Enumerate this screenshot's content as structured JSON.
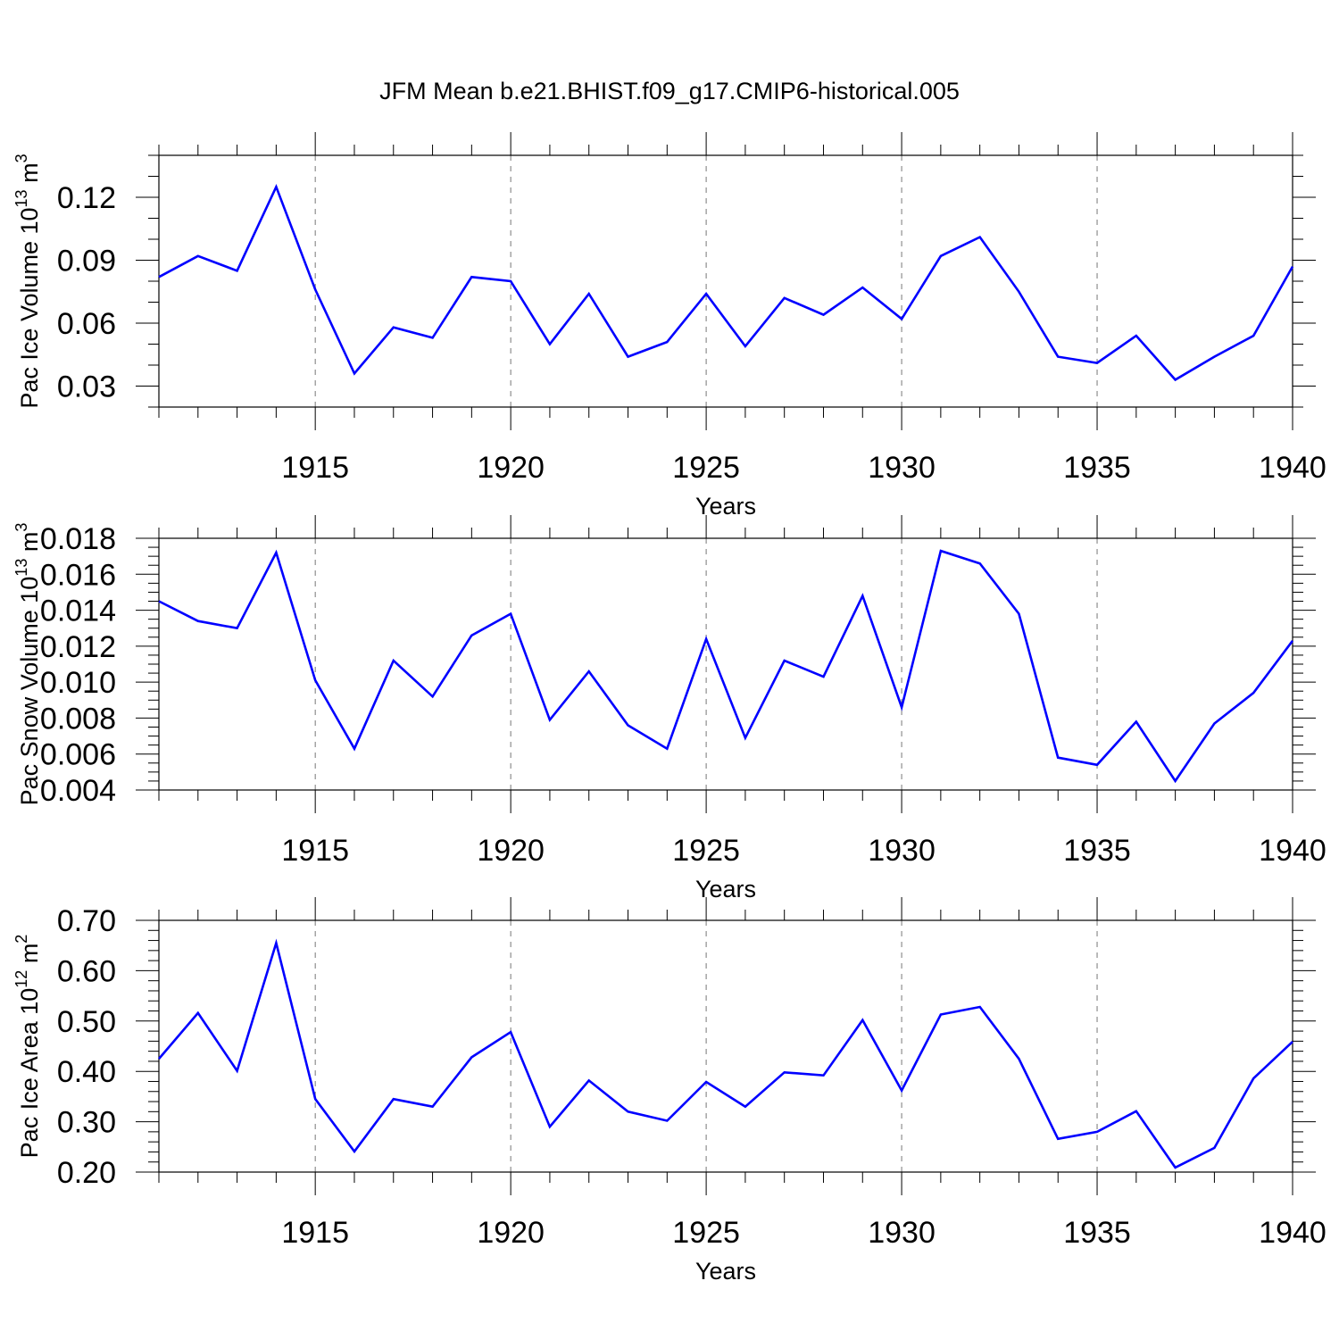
{
  "title": "JFM Mean b.e21.BHIST.f09_g17.CMIP6-historical.005",
  "line_color": "#0000ff",
  "chart_data": [
    {
      "type": "line",
      "ylabel": "Pac Ice Volume 10",
      "ylabel_exp": "13",
      "ylabel_unit": " m",
      "ylabel_unit_exp": "3",
      "xlabel": "Years",
      "xlim": [
        1911,
        1940
      ],
      "ylim": [
        0.02,
        0.14
      ],
      "xticks": [
        1915,
        1920,
        1925,
        1930,
        1935,
        1940
      ],
      "yticks": [
        0.03,
        0.06,
        0.09,
        0.12
      ],
      "yticklabels": [
        "0.03",
        "0.06",
        "0.09",
        "0.12"
      ],
      "yminor_step": 0.01,
      "grid": "dashed vertical at x major ticks",
      "x": [
        1911,
        1912,
        1913,
        1914,
        1915,
        1916,
        1917,
        1918,
        1919,
        1920,
        1921,
        1922,
        1923,
        1924,
        1925,
        1926,
        1927,
        1928,
        1929,
        1930,
        1931,
        1932,
        1933,
        1934,
        1935,
        1936,
        1937,
        1938,
        1939,
        1940
      ],
      "y": [
        0.082,
        0.092,
        0.085,
        0.125,
        0.076,
        0.036,
        0.058,
        0.053,
        0.082,
        0.08,
        0.05,
        0.074,
        0.044,
        0.051,
        0.074,
        0.049,
        0.072,
        0.064,
        0.077,
        0.062,
        0.092,
        0.101,
        0.075,
        0.044,
        0.041,
        0.054,
        0.033,
        0.044,
        0.054,
        0.087
      ]
    },
    {
      "type": "line",
      "ylabel": "Pac Snow Volume 10",
      "ylabel_exp": "13",
      "ylabel_unit": " m",
      "ylabel_unit_exp": "3",
      "xlabel": "Years",
      "xlim": [
        1911,
        1940
      ],
      "ylim": [
        0.004,
        0.018
      ],
      "xticks": [
        1915,
        1920,
        1925,
        1930,
        1935,
        1940
      ],
      "yticks": [
        0.004,
        0.006,
        0.008,
        0.01,
        0.012,
        0.014,
        0.016,
        0.018
      ],
      "yticklabels": [
        "0.004",
        "0.006",
        "0.008",
        "0.010",
        "0.012",
        "0.014",
        "0.016",
        "0.018"
      ],
      "yminor_step": 0.0005,
      "grid": "dashed vertical at x major ticks",
      "x": [
        1911,
        1912,
        1913,
        1914,
        1915,
        1916,
        1917,
        1918,
        1919,
        1920,
        1921,
        1922,
        1923,
        1924,
        1925,
        1926,
        1927,
        1928,
        1929,
        1930,
        1931,
        1932,
        1933,
        1934,
        1935,
        1936,
        1937,
        1938,
        1939,
        1940
      ],
      "y": [
        0.0145,
        0.0134,
        0.013,
        0.0172,
        0.0101,
        0.0063,
        0.0112,
        0.0092,
        0.0126,
        0.0138,
        0.0079,
        0.0106,
        0.0076,
        0.0063,
        0.0124,
        0.0069,
        0.0112,
        0.0103,
        0.0148,
        0.0086,
        0.0173,
        0.0166,
        0.0138,
        0.0058,
        0.0054,
        0.0078,
        0.0045,
        0.0077,
        0.0094,
        0.0123
      ]
    },
    {
      "type": "line",
      "ylabel": "Pac Ice Area 10",
      "ylabel_exp": "12",
      "ylabel_unit": " m",
      "ylabel_unit_exp": "2",
      "xlabel": "Years",
      "xlim": [
        1911,
        1940
      ],
      "ylim": [
        0.2,
        0.7
      ],
      "xticks": [
        1915,
        1920,
        1925,
        1930,
        1935,
        1940
      ],
      "yticks": [
        0.2,
        0.3,
        0.4,
        0.5,
        0.6,
        0.7
      ],
      "yticklabels": [
        "0.20",
        "0.30",
        "0.40",
        "0.50",
        "0.60",
        "0.70"
      ],
      "yminor_step": 0.02,
      "grid": "dashed vertical at x major ticks",
      "x": [
        1911,
        1912,
        1913,
        1914,
        1915,
        1916,
        1917,
        1918,
        1919,
        1920,
        1921,
        1922,
        1923,
        1924,
        1925,
        1926,
        1927,
        1928,
        1929,
        1930,
        1931,
        1932,
        1933,
        1934,
        1935,
        1936,
        1937,
        1938,
        1939,
        1940
      ],
      "y": [
        0.425,
        0.516,
        0.401,
        0.655,
        0.345,
        0.241,
        0.345,
        0.33,
        0.428,
        0.478,
        0.29,
        0.382,
        0.32,
        0.302,
        0.379,
        0.33,
        0.398,
        0.392,
        0.502,
        0.362,
        0.513,
        0.528,
        0.425,
        0.266,
        0.28,
        0.321,
        0.209,
        0.248,
        0.386,
        0.459
      ]
    }
  ]
}
